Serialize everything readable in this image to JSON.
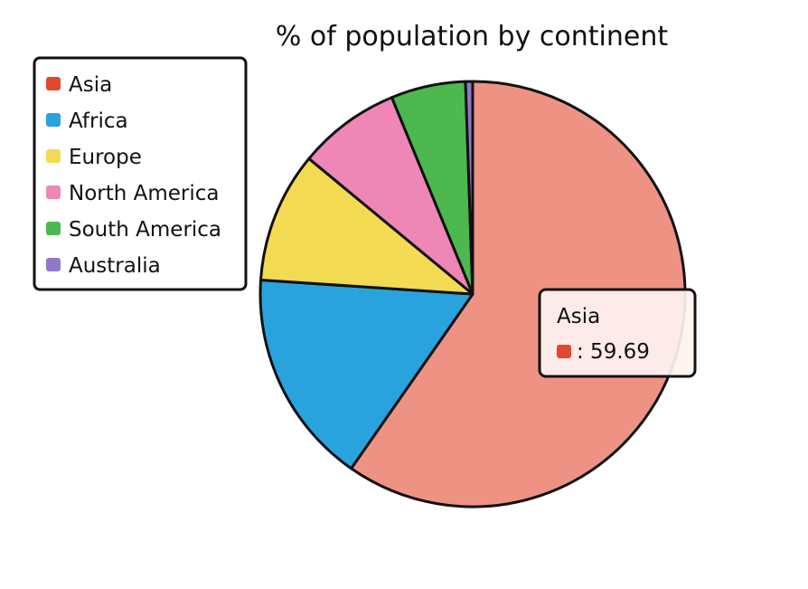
{
  "chart_data": {
    "type": "pie",
    "title": "% of population by continent",
    "legend_position": "top-left",
    "slices": [
      {
        "label": "Asia",
        "value": 59.69,
        "color": "#ee9284",
        "legend_color": "#e0492f"
      },
      {
        "label": "Africa",
        "value": 16.36,
        "color": "#29a3dd",
        "legend_color": "#29a3dd"
      },
      {
        "label": "Europe",
        "value": 9.94,
        "color": "#f2da52",
        "legend_color": "#f2da52"
      },
      {
        "label": "North America",
        "value": 7.79,
        "color": "#ee86b6",
        "legend_color": "#ee86b6"
      },
      {
        "label": "South America",
        "value": 5.68,
        "color": "#4cb84f",
        "legend_color": "#4cb84f"
      },
      {
        "label": "Australia",
        "value": 0.54,
        "color": "#9079c8",
        "legend_color": "#9079c8"
      }
    ],
    "tooltip": {
      "label": "Asia",
      "separator": ":",
      "value": "59.69",
      "color": "#e0492f"
    }
  }
}
